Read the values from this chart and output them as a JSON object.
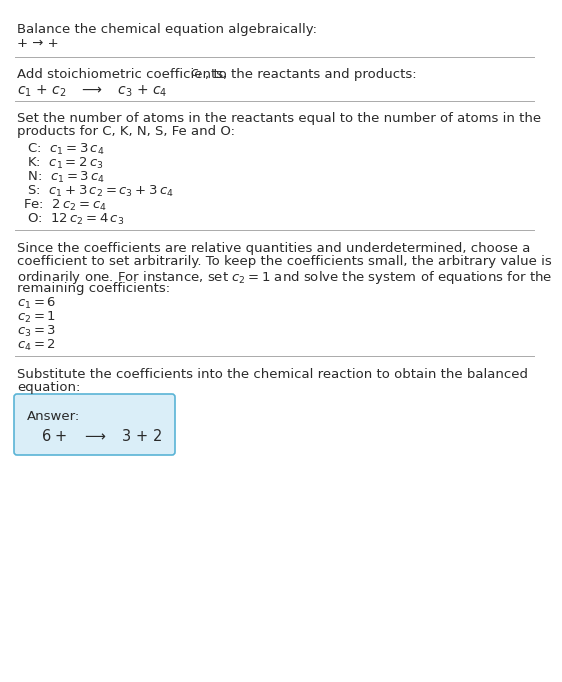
{
  "bg_color": "#ffffff",
  "text_color": "#2a2a2a",
  "title": "Balance the chemical equation algebraically:",
  "reaction1": "+ ⟶ +",
  "sec2_header_plain": "Add stoichiometric coefficients, ",
  "sec2_header_ci": "$c_i$",
  "sec2_header_rest": ", to the reactants and products:",
  "reaction2": "$c_1$ + $c_2$   ⟶   $c_3$ + $c_4$",
  "sec3_line1": "Set the number of atoms in the reactants equal to the number of atoms in the",
  "sec3_line2": "products for C, K, N, S, Fe and O:",
  "atom_equations": [
    " C:  $c_1 = 3\\,c_4$",
    " K:  $c_1 = 2\\,c_3$",
    " N:  $c_1 = 3\\,c_4$",
    " S:  $c_1 + 3\\,c_2 = c_3 + 3\\,c_4$",
    "Fe:  $2\\,c_2 = c_4$",
    " O:  $12\\,c_2 = 4\\,c_3$"
  ],
  "sec4_line1": "Since the coefficients are relative quantities and underdetermined, choose a",
  "sec4_line2": "coefficient to set arbitrarily. To keep the coefficients small, the arbitrary value is",
  "sec4_line3": "ordinarily one. For instance, set $c_2 = 1$ and solve the system of equations for the",
  "sec4_line4": "remaining coefficients:",
  "coeff_lines": [
    "$c_1 = 6$",
    "$c_2 = 1$",
    "$c_3 = 3$",
    "$c_4 = 2$"
  ],
  "sec5_line1": "Substitute the coefficients into the chemical reaction to obtain the balanced",
  "sec5_line2": "equation:",
  "answer_label": "Answer:",
  "answer_eq": "6 +  ⟶  3 + 2",
  "box_facecolor": "#daeef8",
  "box_edgecolor": "#5ab4d6",
  "divider_color": "#aaaaaa",
  "font_size": 9.5,
  "mono_font": "DejaVu Sans Mono",
  "sans_font": "DejaVu Sans"
}
